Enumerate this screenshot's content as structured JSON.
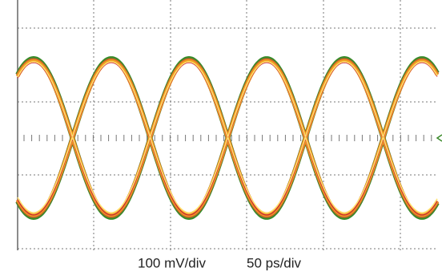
{
  "caption": {
    "vertical_scale": "100 mV/div",
    "horizontal_scale": "50 ps/div"
  }
}
